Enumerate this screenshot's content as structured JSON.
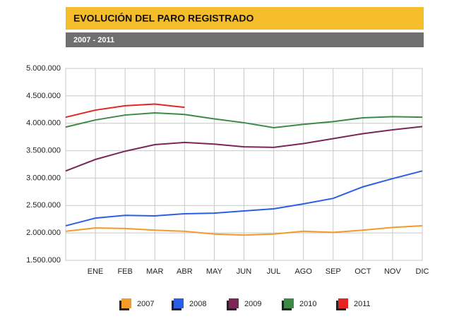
{
  "chart_data": {
    "type": "line",
    "title": "EVOLUCIÓN DEL PARO REGISTRADO",
    "subtitle": "2007 - 2011",
    "categories": [
      null,
      "ENE",
      "FEB",
      "MAR",
      "ABR",
      "MAY",
      "JUN",
      "JUL",
      "AGO",
      "SEP",
      "OCT",
      "NOV",
      "DIC"
    ],
    "series": [
      {
        "name": "2007",
        "color": "#f39a2a",
        "values": [
          2030000,
          2090000,
          2080000,
          2050000,
          2030000,
          1980000,
          1960000,
          1980000,
          2030000,
          2010000,
          2050000,
          2100000,
          2130000
        ]
      },
      {
        "name": "2008",
        "color": "#2b5ee6",
        "values": [
          2130000,
          2270000,
          2320000,
          2310000,
          2350000,
          2360000,
          2400000,
          2440000,
          2530000,
          2630000,
          2840000,
          2990000,
          3130000
        ]
      },
      {
        "name": "2009",
        "color": "#7a2756",
        "values": [
          3130000,
          3340000,
          3490000,
          3610000,
          3650000,
          3620000,
          3570000,
          3560000,
          3630000,
          3720000,
          3810000,
          3880000,
          3940000
        ]
      },
      {
        "name": "2010",
        "color": "#3d8a48",
        "values": [
          3930000,
          4060000,
          4150000,
          4190000,
          4160000,
          4080000,
          4010000,
          3920000,
          3980000,
          4030000,
          4100000,
          4120000,
          4110000
        ]
      },
      {
        "name": "2011",
        "color": "#e52521",
        "values": [
          4110000,
          4240000,
          4320000,
          4350000,
          4290000,
          null,
          null,
          null,
          null,
          null,
          null,
          null,
          null
        ]
      }
    ],
    "ylim": [
      1500000,
      5000000
    ],
    "yticks": [
      {
        "value": 1500000,
        "label": "1.500.000"
      },
      {
        "value": 2000000,
        "label": "2.000.000"
      },
      {
        "value": 2500000,
        "label": "2.500.000"
      },
      {
        "value": 3000000,
        "label": "3.000.000"
      },
      {
        "value": 3500000,
        "label": "3.500.000"
      },
      {
        "value": 4000000,
        "label": "4.000.000"
      },
      {
        "value": 4500000,
        "label": "4.500.000"
      },
      {
        "value": 5000000,
        "label": "5.000.000"
      }
    ],
    "grid": true
  }
}
